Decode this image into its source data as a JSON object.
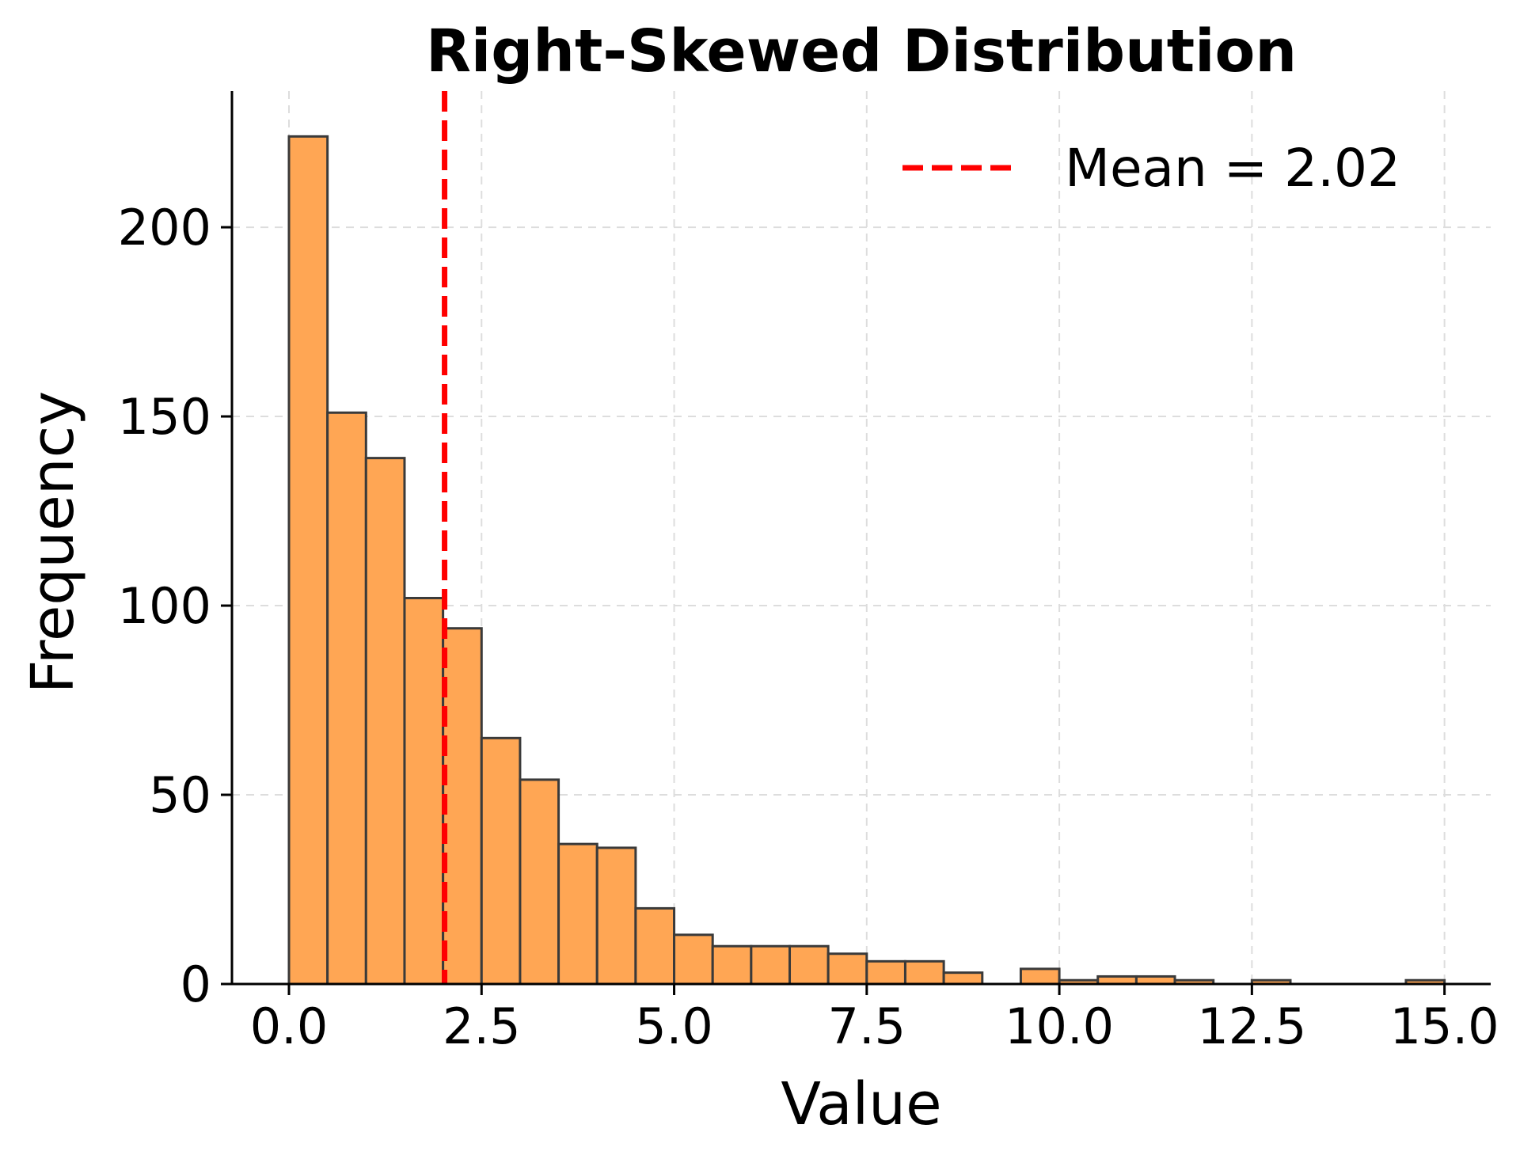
{
  "chart_data": {
    "type": "bar",
    "title": "Right-Skewed Distribution",
    "xlabel": "Value",
    "ylabel": "Frequency",
    "xlim": [
      -0.74,
      15.6
    ],
    "ylim": [
      0,
      236
    ],
    "x_ticks": [
      {
        "value": 0.0,
        "label": "0.0"
      },
      {
        "value": 2.5,
        "label": "2.5"
      },
      {
        "value": 5.0,
        "label": "5.0"
      },
      {
        "value": 7.5,
        "label": "7.5"
      },
      {
        "value": 10.0,
        "label": "10.0"
      },
      {
        "value": 12.5,
        "label": "12.5"
      },
      {
        "value": 15.0,
        "label": "15.0"
      }
    ],
    "y_ticks": [
      {
        "value": 0,
        "label": "0"
      },
      {
        "value": 50,
        "label": "50"
      },
      {
        "value": 100,
        "label": "100"
      },
      {
        "value": 150,
        "label": "150"
      },
      {
        "value": 200,
        "label": "200"
      }
    ],
    "grid": true,
    "bin_edges": [
      0.0,
      0.5,
      1.0,
      1.5,
      2.0,
      2.5,
      3.0,
      3.5,
      4.0,
      4.5,
      5.0,
      5.5,
      6.0,
      6.5,
      7.0,
      7.5,
      8.0,
      8.5,
      9.0,
      9.5,
      10.0,
      10.5,
      11.0,
      11.5,
      12.0,
      12.5,
      13.0,
      13.5,
      14.0,
      14.5,
      15.0
    ],
    "counts": [
      224,
      151,
      139,
      102,
      94,
      65,
      54,
      37,
      36,
      20,
      13,
      10,
      10,
      10,
      8,
      6,
      6,
      3,
      0,
      4,
      1,
      2,
      2,
      1,
      0,
      1,
      0,
      0,
      0,
      1
    ],
    "bar_color": "#ffa654",
    "bar_edge_color": "#3a3a3a",
    "mean_line": {
      "value": 2.02,
      "label": "Mean = 2.02",
      "color": "#ff0000"
    },
    "legend_position": "top-right"
  }
}
